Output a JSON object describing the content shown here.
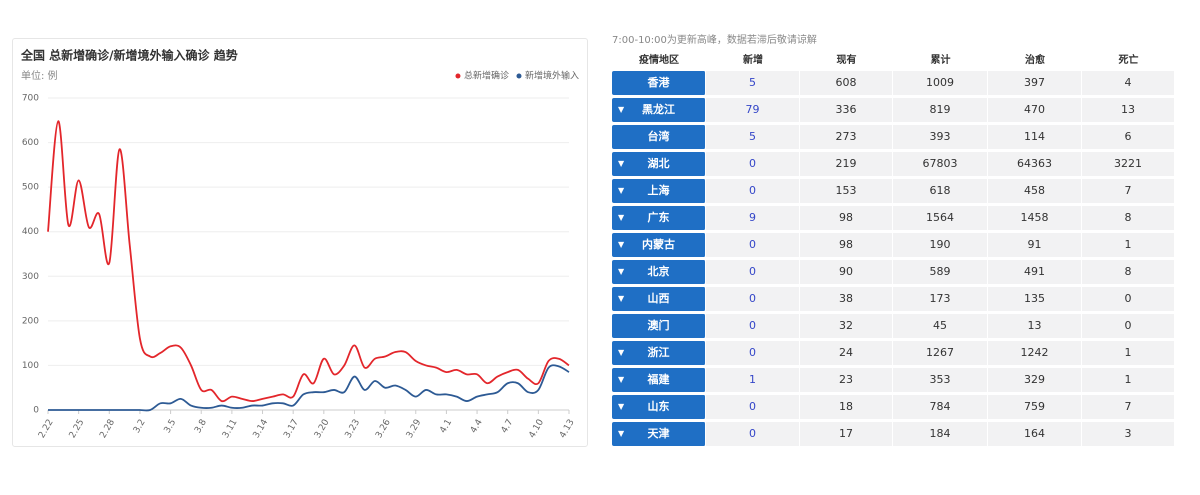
{
  "chart_data": {
    "type": "line",
    "title": "全国 总新增确诊/新增境外输入确诊 趋势",
    "subtitle": "单位: 例",
    "categories": [
      "2.22",
      null,
      null,
      "2.25",
      null,
      null,
      "2.28",
      null,
      null,
      "3.2",
      null,
      null,
      "3.5",
      null,
      null,
      "3.8",
      null,
      null,
      "3.11",
      null,
      null,
      "3.14",
      null,
      null,
      "3.17",
      null,
      null,
      "3.20",
      null,
      null,
      "3.23",
      null,
      null,
      "3.26",
      null,
      null,
      "3.29",
      null,
      null,
      "4.1",
      null,
      null,
      "4.4",
      null,
      null,
      "4.7",
      null,
      null,
      "4.10",
      null,
      null,
      "4.13"
    ],
    "series": [
      {
        "name": "总新增确诊",
        "color": "#e3262b",
        "values": [
          400,
          648,
          415,
          515,
          410,
          440,
          330,
          585,
          370,
          160,
          120,
          128,
          143,
          140,
          100,
          45,
          45,
          20,
          30,
          25,
          20,
          25,
          30,
          35,
          30,
          80,
          60,
          115,
          80,
          100,
          145,
          95,
          115,
          120,
          130,
          130,
          110,
          100,
          95,
          85,
          90,
          80,
          80,
          60,
          75,
          85,
          90,
          70,
          60,
          110,
          115,
          100
        ]
      },
      {
        "name": "新增境外输入",
        "color": "#2d5a94",
        "values": [
          0,
          0,
          0,
          0,
          0,
          0,
          0,
          0,
          0,
          0,
          0,
          15,
          15,
          25,
          10,
          5,
          5,
          10,
          5,
          5,
          10,
          10,
          15,
          15,
          10,
          35,
          40,
          40,
          45,
          40,
          75,
          45,
          65,
          50,
          55,
          45,
          30,
          45,
          35,
          35,
          30,
          20,
          30,
          35,
          40,
          60,
          60,
          40,
          45,
          95,
          98,
          85
        ]
      }
    ],
    "ylim": [
      0,
      700
    ],
    "yticks": [
      0,
      100,
      200,
      300,
      400,
      500,
      600,
      700
    ],
    "grid": true,
    "legend": "top-right"
  },
  "table": {
    "note": "7:00-10:00为更新高峰，数据若滞后敬请谅解",
    "header": [
      "疫情地区",
      "新增",
      "现有",
      "累计",
      "治愈",
      "死亡"
    ],
    "rows": [
      {
        "expandable": false,
        "cells": [
          "香港",
          "5",
          "608",
          "1009",
          "397",
          "4"
        ]
      },
      {
        "expandable": true,
        "cells": [
          "黑龙江",
          "79",
          "336",
          "819",
          "470",
          "13"
        ]
      },
      {
        "expandable": false,
        "cells": [
          "台湾",
          "5",
          "273",
          "393",
          "114",
          "6"
        ]
      },
      {
        "expandable": true,
        "cells": [
          "湖北",
          "0",
          "219",
          "67803",
          "64363",
          "3221"
        ]
      },
      {
        "expandable": true,
        "cells": [
          "上海",
          "0",
          "153",
          "618",
          "458",
          "7"
        ]
      },
      {
        "expandable": true,
        "cells": [
          "广东",
          "9",
          "98",
          "1564",
          "1458",
          "8"
        ]
      },
      {
        "expandable": true,
        "cells": [
          "内蒙古",
          "0",
          "98",
          "190",
          "91",
          "1"
        ]
      },
      {
        "expandable": true,
        "cells": [
          "北京",
          "0",
          "90",
          "589",
          "491",
          "8"
        ]
      },
      {
        "expandable": true,
        "cells": [
          "山西",
          "0",
          "38",
          "173",
          "135",
          "0"
        ]
      },
      {
        "expandable": false,
        "cells": [
          "澳门",
          "0",
          "32",
          "45",
          "13",
          "0"
        ]
      },
      {
        "expandable": true,
        "cells": [
          "浙江",
          "0",
          "24",
          "1267",
          "1242",
          "1"
        ]
      },
      {
        "expandable": true,
        "cells": [
          "福建",
          "1",
          "23",
          "353",
          "329",
          "1"
        ]
      },
      {
        "expandable": true,
        "cells": [
          "山东",
          "0",
          "18",
          "784",
          "759",
          "7"
        ]
      },
      {
        "expandable": true,
        "cells": [
          "天津",
          "0",
          "17",
          "184",
          "164",
          "3"
        ]
      }
    ]
  }
}
